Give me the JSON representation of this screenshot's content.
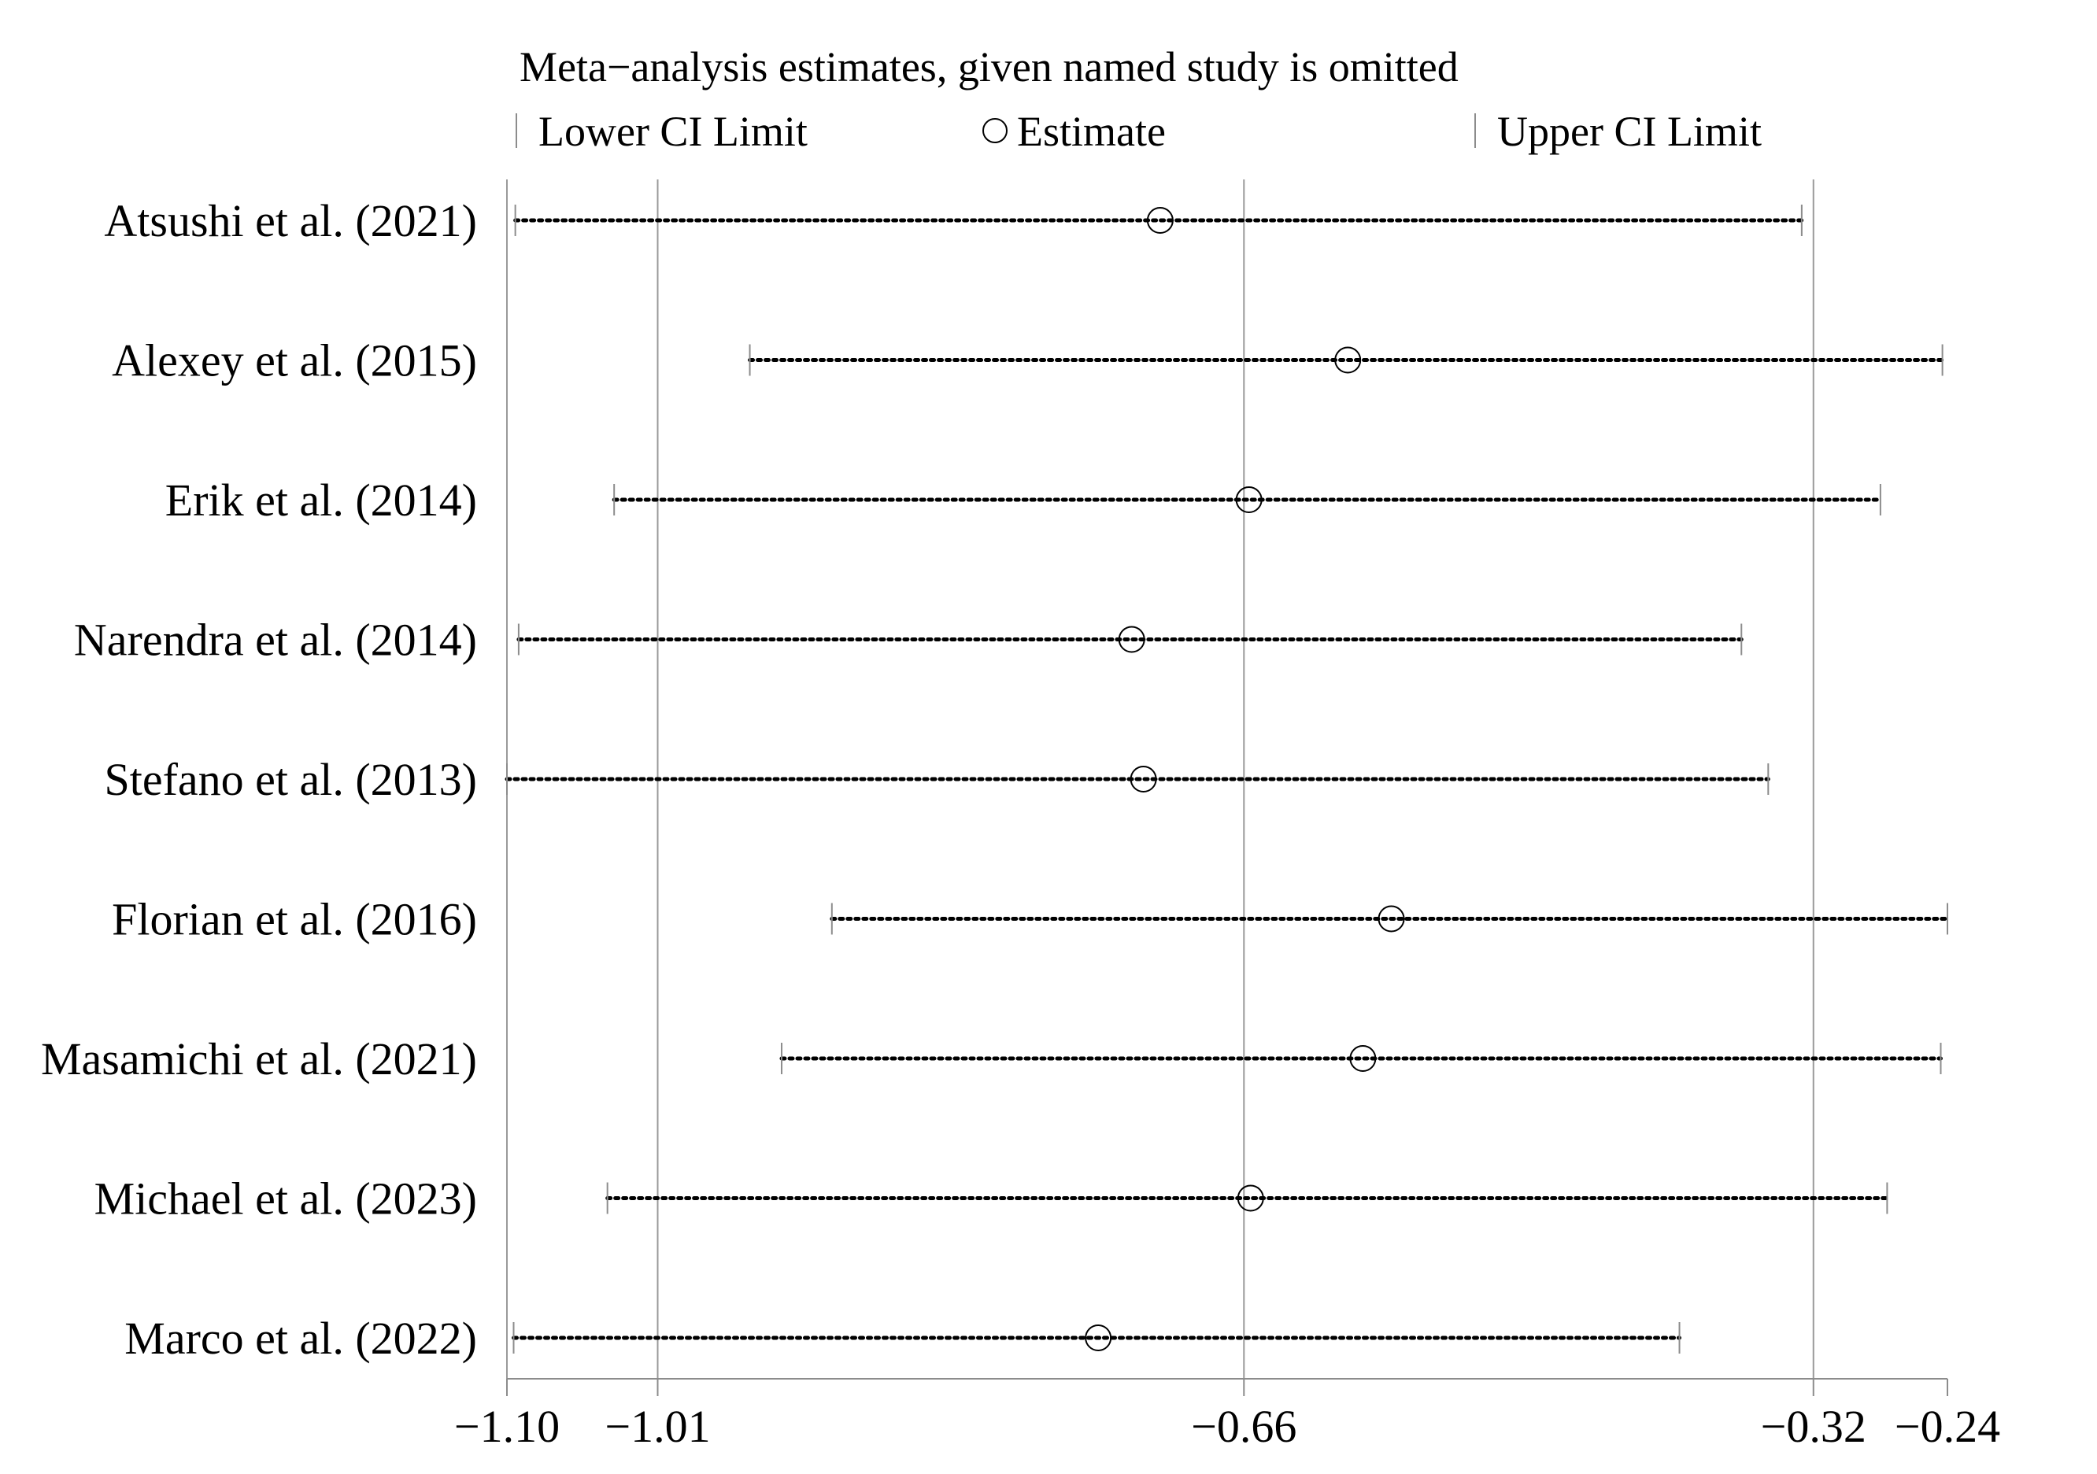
{
  "chart_data": {
    "type": "scatter",
    "title": "Meta−analysis estimates, given named study is omitted",
    "legend": {
      "placement": "top",
      "entries": [
        {
          "key": "lower",
          "label": "Lower CI Limit",
          "marker": "tick"
        },
        {
          "key": "estimate",
          "label": "Estimate",
          "marker": "circle"
        },
        {
          "key": "upper",
          "label": "Upper CI Limit",
          "marker": "tick"
        }
      ]
    },
    "xlim": [
      -1.1,
      -0.24
    ],
    "x_ticks": [
      -1.1,
      -1.01,
      -0.66,
      -0.32,
      -0.24
    ],
    "x_tick_labels": [
      "−1.10",
      "−1.01",
      "−0.66",
      "−0.32",
      "−0.24"
    ],
    "gridlines": [
      -1.1,
      -1.01,
      -0.66,
      -0.32
    ],
    "grid": true,
    "studies": [
      {
        "name": "Atsushi et al. (2021)",
        "lower": -1.095,
        "estimate": -0.71,
        "upper": -0.327
      },
      {
        "name": "Alexey et al. (2015)",
        "lower": -0.955,
        "estimate": -0.598,
        "upper": -0.243
      },
      {
        "name": "Erik et al. (2014)",
        "lower": -1.036,
        "estimate": -0.657,
        "upper": -0.28
      },
      {
        "name": "Narendra et al. (2014)",
        "lower": -1.093,
        "estimate": -0.727,
        "upper": -0.363
      },
      {
        "name": "Stefano et al. (2013)",
        "lower": -1.1,
        "estimate": -0.72,
        "upper": -0.347
      },
      {
        "name": "Florian et al. (2016)",
        "lower": -0.906,
        "estimate": -0.572,
        "upper": -0.24
      },
      {
        "name": "Masamichi et al. (2021)",
        "lower": -0.936,
        "estimate": -0.589,
        "upper": -0.244
      },
      {
        "name": "Michael et al. (2023)",
        "lower": -1.04,
        "estimate": -0.656,
        "upper": -0.276
      },
      {
        "name": "Marco et al. (2022)",
        "lower": -1.096,
        "estimate": -0.747,
        "upper": -0.4
      }
    ]
  },
  "colors": {
    "ink": "#000000",
    "grid": "#9a9a9a",
    "axis": "#8c8c8c",
    "background": "#ffffff"
  }
}
